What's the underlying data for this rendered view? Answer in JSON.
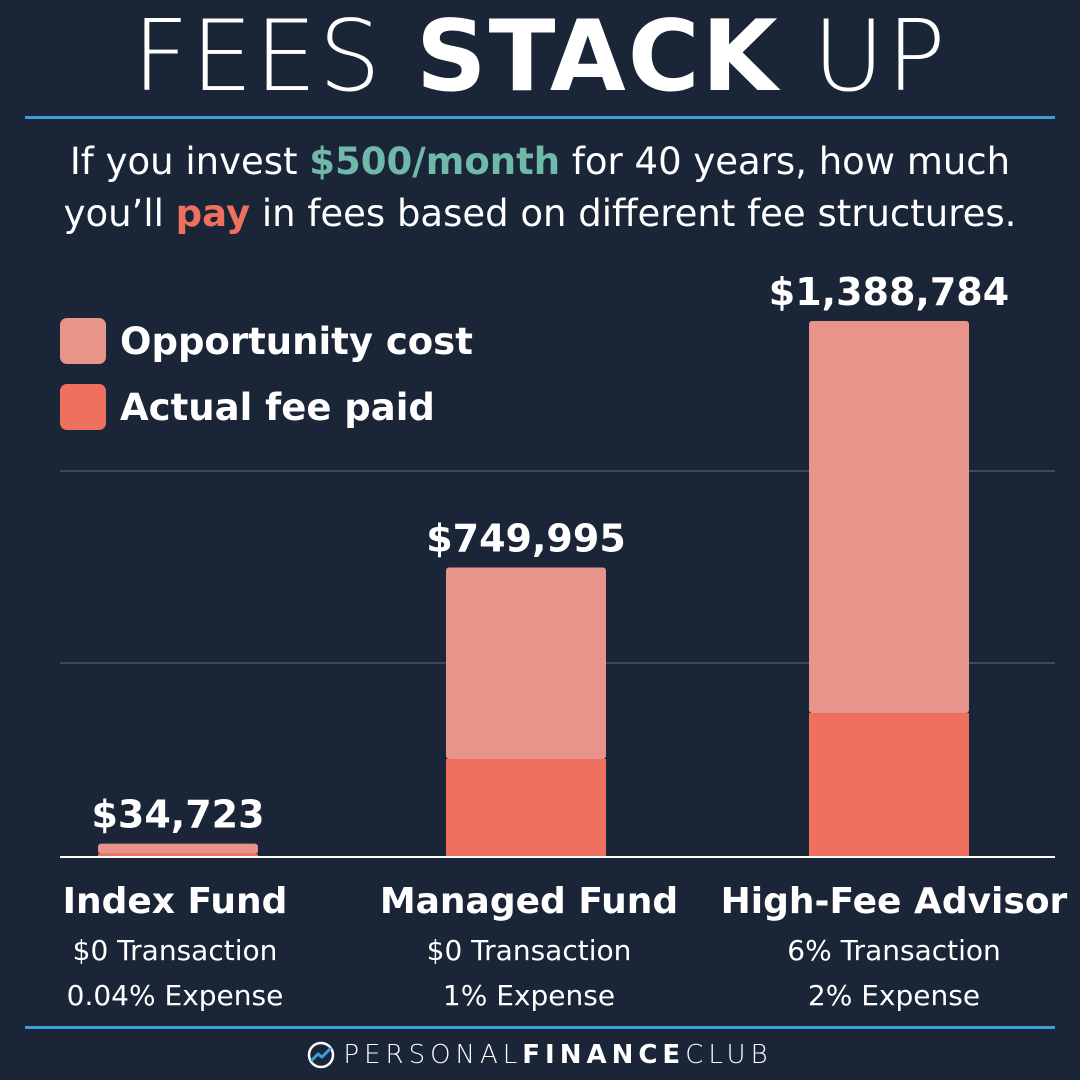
{
  "title": {
    "light_1": "FEES",
    "bold": "STACK",
    "light_2": "UP"
  },
  "subtitle": {
    "part1": "If you invest ",
    "highlight1": "$500/month",
    "part2": " for 40 years, how much you’ll ",
    "highlight2": "pay",
    "part3": " in fees based on different fee structures."
  },
  "legend": [
    {
      "label": "Opportunity cost",
      "color": "#e8948a"
    },
    {
      "label": "Actual fee paid",
      "color": "#f07060"
    }
  ],
  "categories": [
    {
      "name": "Index Fund",
      "line1": "$0 Transaction",
      "line2": "0.04% Expense"
    },
    {
      "name": "Managed Fund",
      "line1": "$0 Transaction",
      "line2": "1% Expense"
    },
    {
      "name": "High-Fee Advisor",
      "line1": "6% Transaction",
      "line2": "2% Expense"
    }
  ],
  "chart_data": {
    "type": "bar",
    "stacked": true,
    "categories": [
      "Index Fund",
      "Managed Fund",
      "High-Fee Advisor"
    ],
    "series": [
      {
        "name": "Actual fee paid",
        "color": "#f07060",
        "values": [
          8000,
          254000,
          373000
        ]
      },
      {
        "name": "Opportunity cost",
        "color": "#e8948a",
        "values": [
          26723,
          495995,
          1015784
        ]
      }
    ],
    "totals": [
      34723,
      749995,
      1388784
    ],
    "total_labels": [
      "$34,723",
      "$749,995",
      "$1,388,784"
    ],
    "ylim": [
      0,
      1500000
    ],
    "gridlines": [
      500000,
      1000000,
      1500000
    ],
    "grid": true,
    "legend_position": "top-left",
    "colors": {
      "grid": "#4a5568",
      "baseline": "#ffffff"
    }
  },
  "footer": {
    "light_1": "PERSONAL",
    "bold": "FINANCE",
    "light_2": "CLUB"
  },
  "colors": {
    "background": "#1b2538",
    "accent_rule": "#3a9fd9",
    "green": "#6fb8aa",
    "red": "#f07060"
  }
}
